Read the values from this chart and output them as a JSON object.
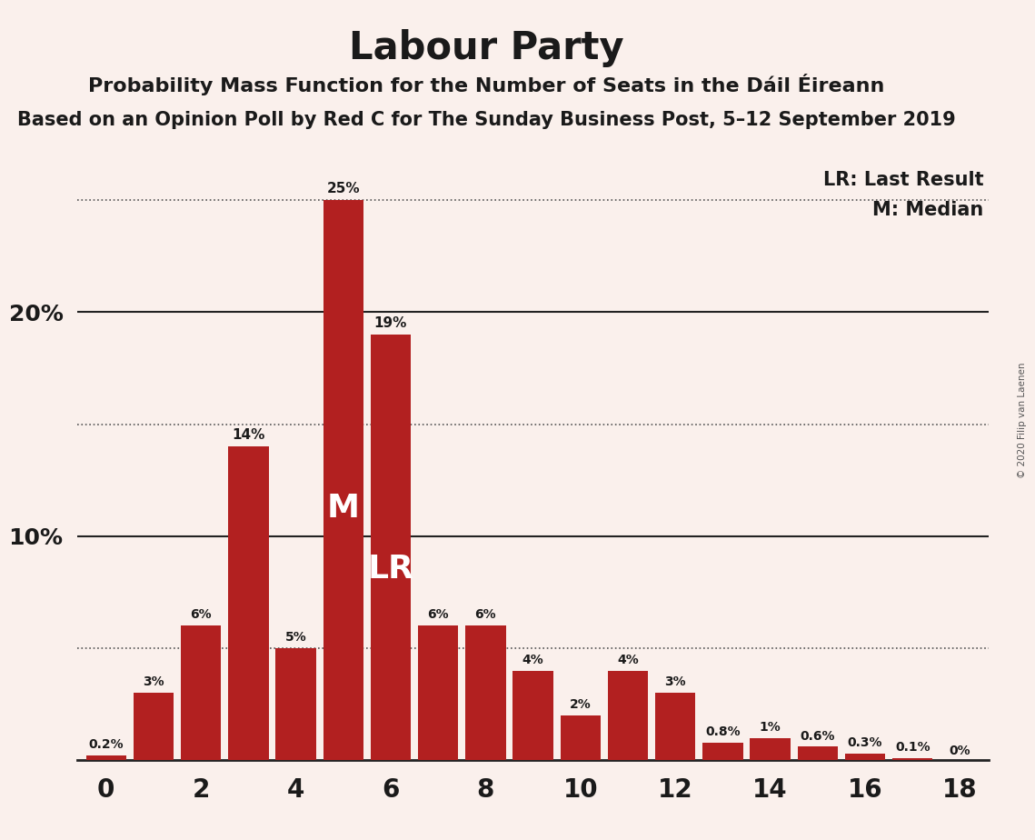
{
  "title": "Labour Party",
  "subtitle1": "Probability Mass Function for the Number of Seats in the Dáil Éireann",
  "subtitle2": "Based on an Opinion Poll by Red C for The Sunday Business Post, 5–12 September 2019",
  "copyright": "© 2020 Filip van Laenen",
  "seats": [
    0,
    1,
    2,
    3,
    4,
    5,
    6,
    7,
    8,
    9,
    10,
    11,
    12,
    13,
    14,
    15,
    16,
    17,
    18
  ],
  "probabilities": [
    0.2,
    3.0,
    6.0,
    14.0,
    5.0,
    25.0,
    19.0,
    6.0,
    6.0,
    4.0,
    2.0,
    4.0,
    3.0,
    0.8,
    1.0,
    0.6,
    0.3,
    0.1,
    0.0
  ],
  "bar_color": "#B22020",
  "bg_color": "#FAF0EC",
  "text_color": "#1a1a1a",
  "bar_label_color_dark": "#1a1a1a",
  "bar_label_color_white": "#ffffff",
  "median_seat": 5,
  "lr_seat": 6,
  "legend_lr": "LR: Last Result",
  "legend_m": "M: Median",
  "ylim_max": 27,
  "ytick_solid": [
    10.0,
    20.0
  ],
  "ytick_dotted": [
    5.0,
    15.0,
    25.0
  ],
  "ytick_labeled": [
    10.0,
    20.0
  ],
  "ytick_labels": [
    "10%",
    "20%"
  ],
  "bar_width": 0.85
}
